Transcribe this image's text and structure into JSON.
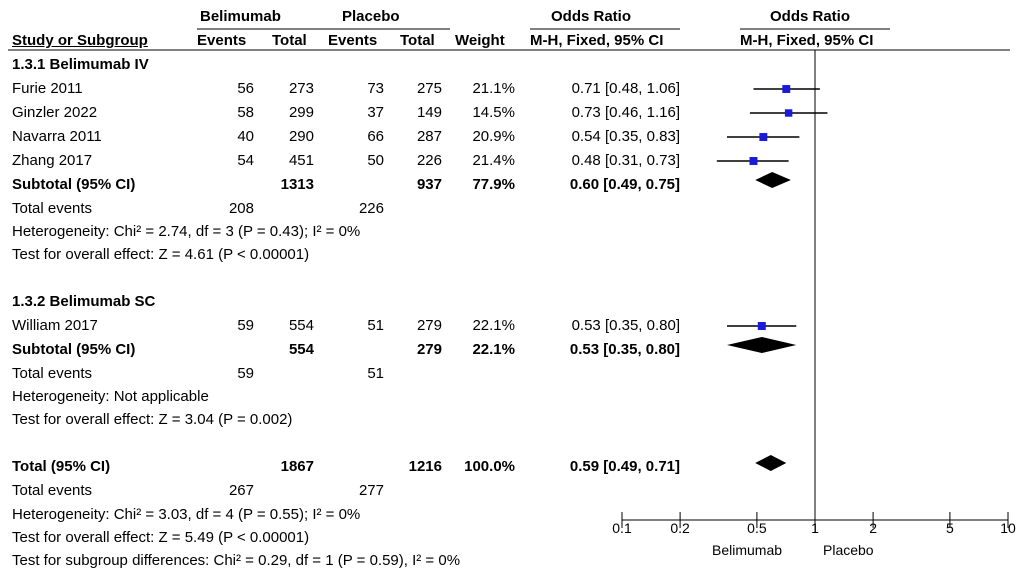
{
  "header": {
    "group1": "Belimumab",
    "group2": "Placebo",
    "or_header": "Odds Ratio",
    "or_header_plot": "Odds Ratio",
    "col_study": "Study or Subgroup",
    "col_events1": "Events",
    "col_total1": "Total",
    "col_events2": "Events",
    "col_total2": "Total",
    "col_weight": "Weight",
    "col_method": "M-H, Fixed, 95% CI",
    "col_method_plot": "M-H, Fixed, 95% CI"
  },
  "subgroup1": {
    "title": "1.3.1 Belimumab IV",
    "rows": [
      {
        "study": "Furie 2011",
        "e1": "56",
        "t1": "273",
        "e2": "73",
        "t2": "275",
        "weight": "21.1%",
        "ci": "0.71 [0.48, 1.06]"
      },
      {
        "study": "Ginzler 2022",
        "e1": "58",
        "t1": "299",
        "e2": "37",
        "t2": "149",
        "weight": "14.5%",
        "ci": "0.73 [0.46, 1.16]"
      },
      {
        "study": "Navarra 2011",
        "e1": "40",
        "t1": "290",
        "e2": "66",
        "t2": "287",
        "weight": "20.9%",
        "ci": "0.54 [0.35, 0.83]"
      },
      {
        "study": "Zhang 2017",
        "e1": "54",
        "t1": "451",
        "e2": "50",
        "t2": "226",
        "weight": "21.4%",
        "ci": "0.48 [0.31, 0.73]"
      }
    ],
    "subtotal": {
      "label": "Subtotal (95% CI)",
      "t1": "1313",
      "t2": "937",
      "weight": "77.9%",
      "ci": "0.60 [0.49, 0.75]"
    },
    "events": {
      "label": "Total events",
      "e1": "208",
      "e2": "226"
    },
    "heterogeneity": "Heterogeneity: Chi² = 2.74, df = 3 (P = 0.43); I² = 0%",
    "overall": "Test for overall effect: Z = 4.61 (P < 0.00001)"
  },
  "subgroup2": {
    "title": "1.3.2 Belimumab SC",
    "rows": [
      {
        "study": "William 2017",
        "e1": "59",
        "t1": "554",
        "e2": "51",
        "t2": "279",
        "weight": "22.1%",
        "ci": "0.53 [0.35, 0.80]"
      }
    ],
    "subtotal": {
      "label": "Subtotal (95% CI)",
      "t1": "554",
      "t2": "279",
      "weight": "22.1%",
      "ci": "0.53 [0.35, 0.80]"
    },
    "events": {
      "label": "Total events",
      "e1": "59",
      "e2": "51"
    },
    "heterogeneity": "Heterogeneity: Not applicable",
    "overall": "Test for overall effect: Z = 3.04 (P = 0.002)"
  },
  "total": {
    "label": "Total (95% CI)",
    "t1": "1867",
    "t2": "1216",
    "weight": "100.0%",
    "ci": "0.59 [0.49, 0.71]",
    "events": {
      "label": "Total events",
      "e1": "267",
      "e2": "277"
    },
    "heterogeneity": "Heterogeneity: Chi² = 3.03, df = 4 (P = 0.55); I² = 0%",
    "overall": "Test for overall effect: Z = 5.49 (P < 0.00001)",
    "subgroup_diff": "Test for subgroup differences: Chi² = 0.29, df = 1 (P = 0.59), I² = 0%"
  },
  "axis": {
    "favours_left": "Belimumab",
    "favours_right": "Placebo"
  },
  "colors": {
    "square": "#1a1adc",
    "line": "#000000",
    "diamond": "#000000"
  },
  "chart_data": {
    "type": "forest",
    "scale": "log",
    "xlim": [
      0.1,
      10
    ],
    "ticks": [
      0.1,
      0.2,
      0.5,
      1,
      2,
      5,
      10
    ],
    "tick_labels": [
      "0.1",
      "0.2",
      "0.5",
      "1",
      "2",
      "5",
      "10"
    ],
    "null_line": 1,
    "studies": [
      {
        "name": "Furie 2011",
        "or": 0.71,
        "lo": 0.48,
        "hi": 1.06,
        "weight": 21.1
      },
      {
        "name": "Ginzler 2022",
        "or": 0.73,
        "lo": 0.46,
        "hi": 1.16,
        "weight": 14.5
      },
      {
        "name": "Navarra 2011",
        "or": 0.54,
        "lo": 0.35,
        "hi": 0.83,
        "weight": 20.9
      },
      {
        "name": "Zhang 2017",
        "or": 0.48,
        "lo": 0.31,
        "hi": 0.73,
        "weight": 21.4
      },
      {
        "name": "William 2017",
        "or": 0.53,
        "lo": 0.35,
        "hi": 0.8,
        "weight": 22.1
      }
    ],
    "summaries": [
      {
        "name": "Subtotal (95% CI)",
        "group": "1.3.1 Belimumab IV",
        "or": 0.6,
        "lo": 0.49,
        "hi": 0.75
      },
      {
        "name": "Subtotal (95% CI)",
        "group": "1.3.2 Belimumab SC",
        "or": 0.53,
        "lo": 0.35,
        "hi": 0.8
      },
      {
        "name": "Total (95% CI)",
        "group": "",
        "or": 0.59,
        "lo": 0.49,
        "hi": 0.71
      }
    ]
  }
}
